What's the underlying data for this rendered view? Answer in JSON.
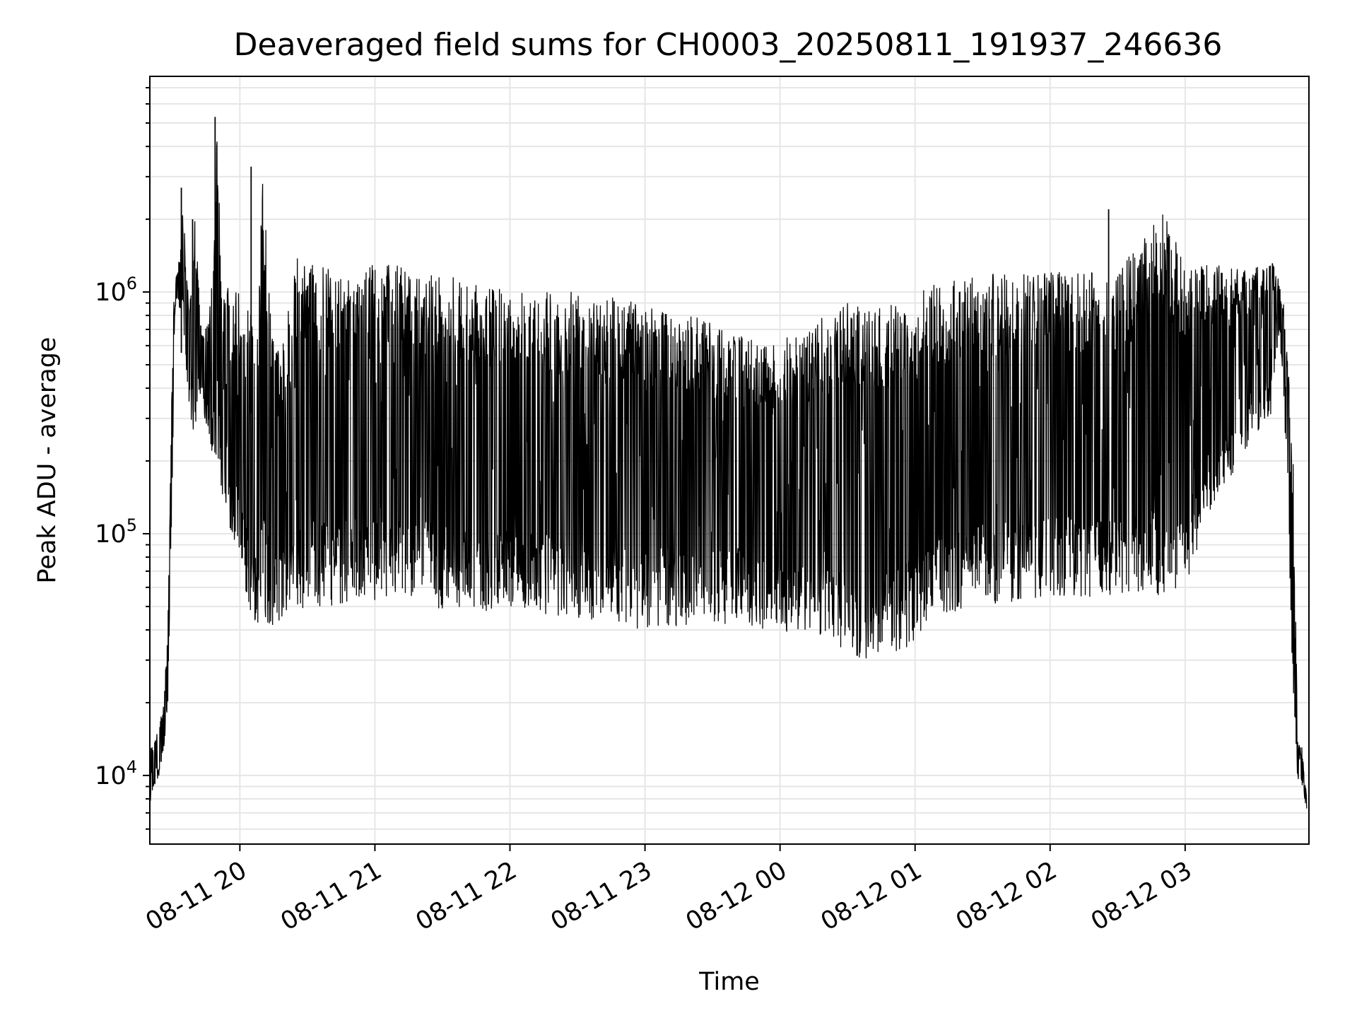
{
  "chart_data": {
    "type": "line",
    "title": "Deaveraged field sums for CH0003_20250811_191937_246636",
    "xlabel": "Time",
    "ylabel": "Peak ADU - average",
    "yscale": "log",
    "grid": true,
    "line_color": "#000000",
    "grid_color": "#e6e6e6",
    "xlim": [
      "2025-08-11 19:20",
      "2025-08-12 03:55"
    ],
    "ylim": [
      5200,
      7800000
    ],
    "x_ticks": [
      {
        "t": "2025-08-11 20:00",
        "label": "08-11 20"
      },
      {
        "t": "2025-08-11 21:00",
        "label": "08-11 21"
      },
      {
        "t": "2025-08-11 22:00",
        "label": "08-11 22"
      },
      {
        "t": "2025-08-11 23:00",
        "label": "08-11 23"
      },
      {
        "t": "2025-08-12 00:00",
        "label": "08-12 00"
      },
      {
        "t": "2025-08-12 01:00",
        "label": "08-12 01"
      },
      {
        "t": "2025-08-12 02:00",
        "label": "08-12 02"
      },
      {
        "t": "2025-08-12 03:00",
        "label": "08-12 03"
      }
    ],
    "y_ticks": [
      {
        "value": 10000,
        "base": "10",
        "exp": "4"
      },
      {
        "value": 100000,
        "base": "10",
        "exp": "5"
      },
      {
        "value": 1000000,
        "base": "10",
        "exp": "6"
      }
    ],
    "series": [
      {
        "x": [
          "2025-08-11 19:20",
          "2025-08-11 19:22",
          "2025-08-11 19:24",
          "2025-08-11 19:26",
          "2025-08-11 19:28",
          "2025-08-11 19:30",
          "2025-08-11 19:31",
          "2025-08-11 19:32",
          "2025-08-11 19:33",
          "2025-08-11 19:34",
          "2025-08-11 19:35",
          "2025-08-11 19:36",
          "2025-08-11 19:38",
          "2025-08-11 19:40",
          "2025-08-11 19:42",
          "2025-08-11 19:44",
          "2025-08-11 19:46",
          "2025-08-11 19:48",
          "2025-08-11 19:50",
          "2025-08-11 19:52",
          "2025-08-11 19:54",
          "2025-08-11 19:56",
          "2025-08-11 19:58",
          "2025-08-11 20:00",
          "2025-08-11 20:02",
          "2025-08-11 20:04",
          "2025-08-11 20:06",
          "2025-08-11 20:08",
          "2025-08-11 20:10",
          "2025-08-11 20:15",
          "2025-08-11 20:20",
          "2025-08-11 20:25",
          "2025-08-11 20:30",
          "2025-08-11 20:35",
          "2025-08-11 20:40",
          "2025-08-11 20:50",
          "2025-08-11 21:00",
          "2025-08-11 21:10",
          "2025-08-11 21:20",
          "2025-08-11 21:30",
          "2025-08-11 22:00",
          "2025-08-11 22:30",
          "2025-08-11 23:00",
          "2025-08-11 23:20",
          "2025-08-11 23:40",
          "2025-08-11 23:55",
          "2025-08-12 00:10",
          "2025-08-12 00:20",
          "2025-08-12 00:30",
          "2025-08-12 00:40",
          "2025-08-12 00:50",
          "2025-08-12 00:55",
          "2025-08-12 01:00",
          "2025-08-12 01:10",
          "2025-08-12 01:20",
          "2025-08-12 01:40",
          "2025-08-12 02:00",
          "2025-08-12 02:30",
          "2025-08-12 02:50",
          "2025-08-12 03:00",
          "2025-08-12 03:10",
          "2025-08-12 03:20",
          "2025-08-12 03:25",
          "2025-08-12 03:30",
          "2025-08-12 03:32",
          "2025-08-12 03:34",
          "2025-08-12 03:36",
          "2025-08-12 03:38",
          "2025-08-12 03:40",
          "2025-08-12 03:42",
          "2025-08-12 03:44",
          "2025-08-12 03:46",
          "2025-08-12 03:48",
          "2025-08-12 03:50",
          "2025-08-12 03:52",
          "2025-08-12 03:54"
        ],
        "upper": [
          13000,
          14000,
          16000,
          20000,
          40000,
          600000,
          1100000,
          1200000,
          1400000,
          1600000,
          2700000,
          1200000,
          1000000,
          2000000,
          1000000,
          700000,
          800000,
          1200000,
          5300000,
          900000,
          1300000,
          800000,
          1100000,
          1000000,
          700000,
          900000,
          900000,
          700000,
          3300000,
          600000,
          700000,
          1400000,
          1300000,
          1300000,
          1300000,
          1200000,
          1300000,
          1300000,
          1200000,
          1200000,
          1000000,
          1000000,
          900000,
          800000,
          700000,
          600000,
          700000,
          800000,
          900000,
          850000,
          900000,
          950000,
          1000000,
          1100000,
          1150000,
          1200000,
          1200000,
          1250000,
          2200000,
          1300000,
          1300000,
          1300000,
          1250000,
          1200000,
          1300000,
          1200000,
          1400000,
          1500000,
          1200000,
          1100000,
          900000,
          500000,
          200000,
          14000,
          13000,
          8000
        ],
        "lower": [
          7500,
          9000,
          10000,
          12000,
          20000,
          150000,
          800000,
          900000,
          800000,
          900000,
          700000,
          500000,
          300000,
          250000,
          400000,
          300000,
          250000,
          200000,
          200000,
          150000,
          120000,
          100000,
          90000,
          80000,
          60000,
          50000,
          45000,
          42000,
          42000,
          42000,
          45000,
          48000,
          50000,
          50000,
          50000,
          52000,
          52000,
          52000,
          55000,
          48000,
          48000,
          45000,
          40000,
          42000,
          42000,
          40000,
          38000,
          35000,
          30000,
          30000,
          32000,
          33000,
          36000,
          45000,
          48000,
          52000,
          55000,
          55000,
          55000,
          60000,
          120000,
          150000,
          200000,
          250000,
          250000,
          300000,
          300000,
          300000,
          500000,
          700000,
          300000,
          100000,
          20000,
          9500,
          9000,
          7200
        ]
      }
    ],
    "spikes": [
      {
        "t": "2025-08-11 19:49",
        "value": 5300000
      },
      {
        "t": "2025-08-11 20:05",
        "value": 3300000
      },
      {
        "t": "2025-08-12 02:26",
        "value": 2200000
      },
      {
        "t": "2025-08-11 19:34",
        "value": 2700000
      },
      {
        "t": "2025-08-11 19:39",
        "value": 2000000
      }
    ]
  }
}
